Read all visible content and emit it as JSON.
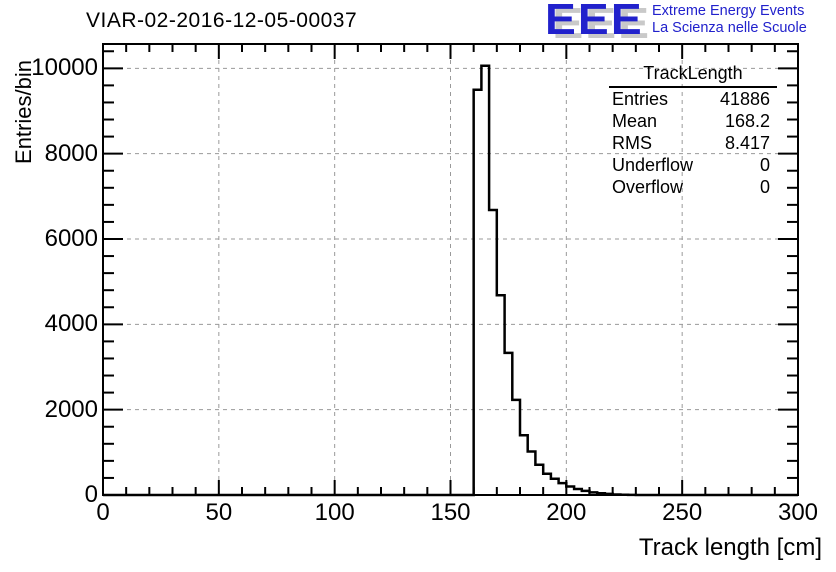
{
  "logo": {
    "acronym": "EEE",
    "line1": "Extreme Energy Events",
    "line2": "La Scienza nelle Scuole",
    "text_color": "#2121cc",
    "shadow_color": "#c9c9c9"
  },
  "stats": {
    "header": "TrackLength",
    "rows": [
      {
        "label": "Entries",
        "value": "41886"
      },
      {
        "label": "Mean",
        "value": "168.2"
      },
      {
        "label": "RMS",
        "value": "8.417"
      },
      {
        "label": "Underflow",
        "value": "0"
      },
      {
        "label": "Overflow",
        "value": "0"
      }
    ]
  },
  "chart_data": {
    "type": "bar",
    "subtype": "step-histogram",
    "title": "VIAR-02-2016-12-05-00037",
    "xlabel": "Track length [cm]",
    "ylabel": "Entries/bin",
    "xlim": [
      0,
      300
    ],
    "ylim": [
      0,
      10570
    ],
    "x_major_ticks": [
      0,
      50,
      100,
      150,
      200,
      250,
      300
    ],
    "x_minor_step": 10,
    "y_major_ticks": [
      0,
      2000,
      4000,
      6000,
      8000,
      10000
    ],
    "y_minor_step": 400,
    "grid": true,
    "grid_color": "#9a9a9a",
    "line_color": "#000000",
    "bin_start": 160,
    "bin_width": 3.3333,
    "values": [
      9500,
      10060,
      6680,
      4680,
      3330,
      2230,
      1400,
      1020,
      710,
      500,
      380,
      280,
      200,
      140,
      95,
      60,
      40,
      25,
      12,
      5,
      2
    ]
  }
}
